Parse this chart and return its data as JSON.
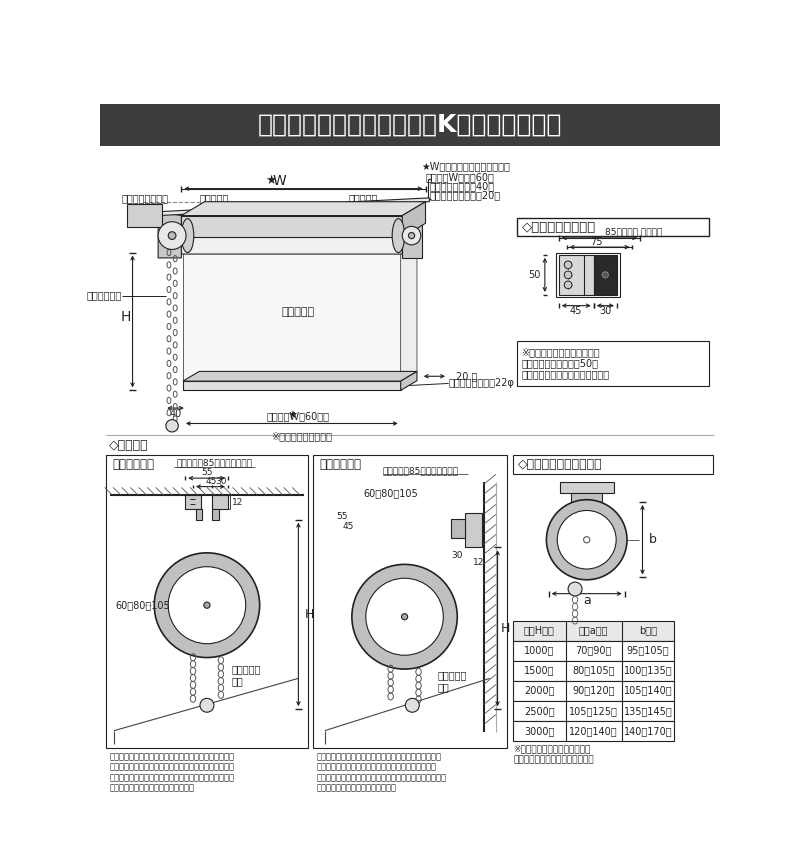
{
  "title": "チェーンドライブタイプ　K型　仕様と構造",
  "title_bg": "#3d3d3d",
  "title_color": "#ffffff",
  "bg_color": "#ffffff",
  "line_color": "#222222",
  "gray_color": "#aaaaaa",
  "light_gray": "#cccccc",
  "dark_gray": "#555555",
  "bracket_title": "◇ブラケットサイズ",
  "bracket_note": "※両サイドのブラケットは、\nヘッドレールの端より50㎜\n以内のところへ取付けて下さい。",
  "roll_title": "◇巻上げ時のロール直径",
  "naomari_title": "◇納まり図",
  "ceiling_title": "〈天井付け〉",
  "front_title": "〈正面付け〉",
  "ceiling_note": "取付けには85㎜以上必要です",
  "front_note": "取付けには85㎜以上必要です",
  "ceiling_desc": "ブラケットを天井面に取付け、ブラケット（非可動部）\nにヘッドレールを差し込み、ブラケット可動部をスライ\nドさせ固定して下さい。最後にブラケット可動部分のネ\nジ穴より木ネジにて固定して下さい。",
  "front_desc": "ブラケットを壁面に取付け、ブラケット（非可動部）に\nヘッドレールを差し込み、ブラケット可動部をスライ\nドさせ固定して下さい。最後にブラケット可動部分のネジ\n穴より木ネジにて固定して下さい。",
  "table_headers": [
    "商品H寸法",
    "直径a寸法",
    "b寸法"
  ],
  "table_rows": [
    [
      "1000㎜",
      "70～90㎜",
      "95～105㎜"
    ],
    [
      "1500㎜",
      "80～105㎜",
      "100～135㎜"
    ],
    [
      "2000㎜",
      "90～120㎜",
      "105～140㎜"
    ],
    [
      "2500㎜",
      "105～125㎜",
      "135～145㎜"
    ],
    [
      "3000㎜",
      "120～140㎜",
      "140～170㎜"
    ]
  ],
  "table_note": "※おおよその目安となります。\n生地によって寸法は異なります。",
  "W_note_line1": "★W寸法（発注寸法）と生地幅",
  "W_note_line2": "生地幅＝W寸法－60㎜",
  "W_note_line3": "操作側すきま＝約40㎜",
  "W_note_line4": "非操作側すきま＝約20㎜"
}
